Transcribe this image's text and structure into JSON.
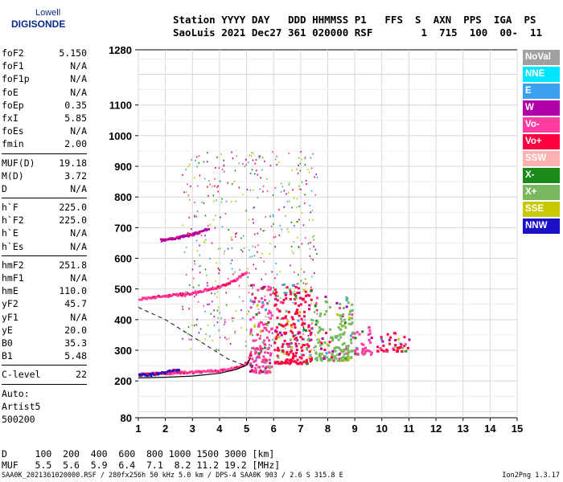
{
  "logo": {
    "line1": "Lowell",
    "line2": "DIGISONDE"
  },
  "header": {
    "line1": "Station YYYY DAY   DDD HHMMSS P1   FFS  S  AXN  PPS  IGA  PS",
    "line2": "SaoLuis 2021 Dec27 361 020000 RSF        1  715  100  00-  11"
  },
  "params": [
    [
      {
        "k": "foF2",
        "v": "5.150"
      },
      {
        "k": "foF1",
        "v": "N/A"
      },
      {
        "k": "foF1p",
        "v": "N/A"
      },
      {
        "k": "foE",
        "v": "N/A"
      },
      {
        "k": "foEp",
        "v": "0.35"
      },
      {
        "k": "fxI",
        "v": "5.85"
      },
      {
        "k": "foEs",
        "v": "N/A"
      },
      {
        "k": "fmin",
        "v": "2.00"
      }
    ],
    [
      {
        "k": "MUF(D)",
        "v": "19.18"
      },
      {
        "k": "M(D)",
        "v": "3.72"
      },
      {
        "k": "D",
        "v": "N/A"
      }
    ],
    [
      {
        "k": "h`F",
        "v": "225.0"
      },
      {
        "k": "h`F2",
        "v": "225.0"
      },
      {
        "k": "h`E",
        "v": "N/A"
      },
      {
        "k": "h`Es",
        "v": "N/A"
      }
    ],
    [
      {
        "k": "hmF2",
        "v": "251.8"
      },
      {
        "k": "hmF1",
        "v": "N/A"
      },
      {
        "k": "hmE",
        "v": "110.0"
      },
      {
        "k": "yF2",
        "v": "45.7"
      },
      {
        "k": "yF1",
        "v": "N/A"
      },
      {
        "k": "yE",
        "v": "20.0"
      },
      {
        "k": "B0",
        "v": "35.3"
      },
      {
        "k": "B1",
        "v": "5.48"
      }
    ],
    [
      {
        "k": "C-level",
        "v": "22"
      }
    ],
    [
      {
        "k": "Auto:",
        "v": ""
      },
      {
        "k": "Artist5",
        "v": ""
      },
      {
        "k": "500200",
        "v": ""
      }
    ]
  ],
  "footer": {
    "d_line": "D     100  200  400  600  800 1000 1500 3000 [km]",
    "muf_line": "MUF   5.5  5.6  5.9  6.4  7.1  8.2 11.2 19.2 [MHz]",
    "file_line": "SAA0K_2021361020000.RSF / 280fx256h 50 kHz 5.0 km / DPS-4 SAA0K 903 / 2.6 S 315.8 E",
    "version": "Ion2Png 1.3.17"
  },
  "legend": [
    {
      "label": "NoVal",
      "color": "#a0a0a0"
    },
    {
      "label": "NNE",
      "color": "#00e5ff"
    },
    {
      "label": "E",
      "color": "#3aa0f0"
    },
    {
      "label": "W",
      "color": "#b000a8"
    },
    {
      "label": "Vo-",
      "color": "#ff3ca0"
    },
    {
      "label": "Vo+",
      "color": "#ff0040"
    },
    {
      "label": "SSW",
      "color": "#ffb0b0"
    },
    {
      "label": "X-",
      "color": "#1a8a1a"
    },
    {
      "label": "X+",
      "color": "#7ab860"
    },
    {
      "label": "SSE",
      "color": "#c8c800"
    },
    {
      "label": "NNW",
      "color": "#1a10c8"
    }
  ],
  "chart_data": {
    "type": "scatter",
    "title": "",
    "xlabel": "",
    "ylabel": "",
    "xlim": [
      1,
      15
    ],
    "ylim": [
      80,
      1280
    ],
    "x_ticks": [
      1,
      2,
      3,
      4,
      5,
      6,
      7,
      8,
      9,
      10,
      11,
      12,
      13,
      14,
      15
    ],
    "y_ticks": [
      80,
      200,
      300,
      400,
      500,
      600,
      700,
      800,
      900,
      1000,
      1100,
      1280
    ],
    "grid": true,
    "traces": [
      {
        "name": "o-trace F2",
        "color": "#ff3ca0",
        "points": [
          [
            1.0,
            225
          ],
          [
            2.0,
            228
          ],
          [
            3.0,
            232
          ],
          [
            4.0,
            237
          ],
          [
            4.6,
            245
          ],
          [
            5.0,
            262
          ],
          [
            5.15,
            300
          ]
        ]
      },
      {
        "name": "o-trace 2-hop",
        "color": "#ff3ca0",
        "points": [
          [
            1.0,
            470
          ],
          [
            2.0,
            480
          ],
          [
            3.0,
            490
          ],
          [
            4.0,
            510
          ],
          [
            4.6,
            535
          ],
          [
            5.0,
            560
          ]
        ]
      },
      {
        "name": "o-trace 3-hop",
        "color": "#b000a8",
        "points": [
          [
            1.8,
            662
          ],
          [
            2.5,
            672
          ],
          [
            3.0,
            682
          ],
          [
            3.6,
            700
          ]
        ]
      },
      {
        "name": "x-trace",
        "color": "#1a10c8",
        "points": [
          [
            1.0,
            222
          ],
          [
            1.5,
            224
          ],
          [
            2.0,
            232
          ],
          [
            2.5,
            240
          ]
        ]
      }
    ],
    "profile_curve": [
      [
        1.0,
        210
      ],
      [
        2.0,
        212
      ],
      [
        3.0,
        216
      ],
      [
        4.0,
        225
      ],
      [
        4.6,
        237
      ],
      [
        5.0,
        252
      ],
      [
        5.15,
        275
      ]
    ],
    "profile_dashed": [
      [
        1.0,
        440
      ],
      [
        2.0,
        400
      ],
      [
        3.0,
        345
      ],
      [
        3.8,
        300
      ],
      [
        4.3,
        272
      ],
      [
        4.9,
        252
      ]
    ],
    "clusters": [
      {
        "x": [
          5.1,
          5.9
        ],
        "y": [
          230,
          520
        ],
        "color": "#ff3ca0"
      },
      {
        "x": [
          6.0,
          7.4
        ],
        "y": [
          260,
          520
        ],
        "color": "#ff0040"
      },
      {
        "x": [
          7.5,
          8.9
        ],
        "y": [
          270,
          480
        ],
        "color": "#7ab860"
      },
      {
        "x": [
          8.9,
          9.6
        ],
        "y": [
          290,
          380
        ],
        "color": "#ff3ca0"
      },
      {
        "x": [
          9.8,
          11.0
        ],
        "y": [
          300,
          360
        ],
        "color": "#ff0040"
      }
    ]
  }
}
